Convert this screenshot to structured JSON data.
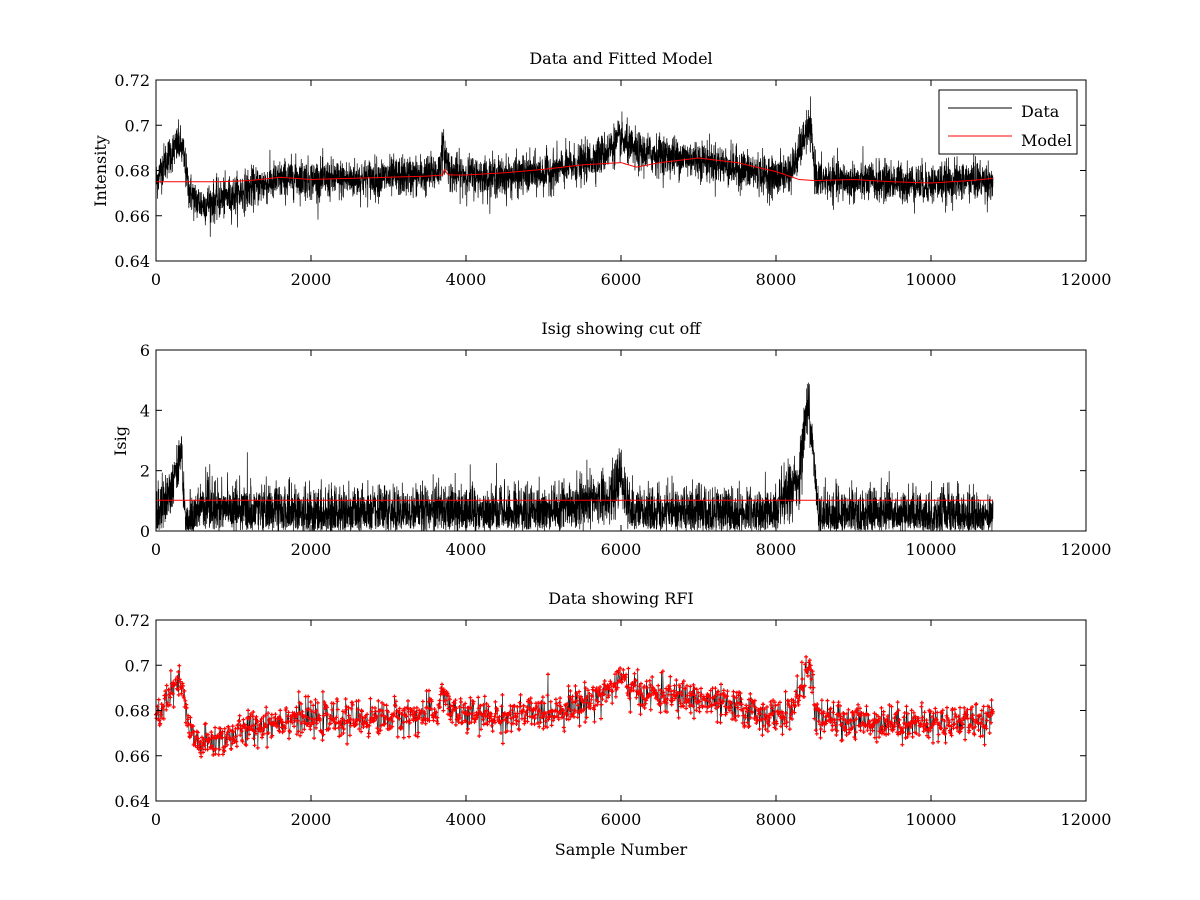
{
  "figure": {
    "background": "#ffffff"
  },
  "colors": {
    "data": "#000000",
    "model": "#ff0000",
    "rfi": "#ff0000",
    "axes": "#000000"
  },
  "chart_data": [
    {
      "type": "line",
      "title": "Data and Fitted Model",
      "xlabel": "",
      "ylabel": "Intensity",
      "xlim": [
        0,
        12000
      ],
      "ylim": [
        0.64,
        0.72
      ],
      "xticks": [
        0,
        2000,
        4000,
        6000,
        8000,
        10000,
        12000
      ],
      "xtick_labels": [
        "0",
        "2000",
        "4000",
        "6000",
        "8000",
        "10000",
        "12000"
      ],
      "yticks": [
        0.64,
        0.66,
        0.68,
        0.7,
        0.72
      ],
      "ytick_labels": [
        "0.64",
        "0.66",
        "0.68",
        "0.7",
        "0.72"
      ],
      "grid": false,
      "legend": {
        "position": "top-right",
        "entries": [
          "Data",
          "Model"
        ]
      },
      "series": [
        {
          "name": "Data",
          "color": "#000000",
          "noise": 0.008,
          "x": [
            0,
            100,
            200,
            300,
            350,
            420,
            500,
            600,
            800,
            1000,
            1200,
            1500,
            1800,
            2000,
            2500,
            3000,
            3500,
            3650,
            3700,
            3750,
            3800,
            4000,
            4500,
            5000,
            5500,
            5800,
            6000,
            6050,
            6200,
            6500,
            7000,
            7500,
            8000,
            8200,
            8300,
            8400,
            8450,
            8500,
            8550,
            8600,
            9000,
            9500,
            10000,
            10500,
            10800
          ],
          "y": [
            0.675,
            0.683,
            0.688,
            0.692,
            0.688,
            0.672,
            0.667,
            0.665,
            0.667,
            0.669,
            0.672,
            0.675,
            0.677,
            0.676,
            0.676,
            0.677,
            0.678,
            0.68,
            0.69,
            0.685,
            0.679,
            0.678,
            0.677,
            0.679,
            0.683,
            0.688,
            0.694,
            0.692,
            0.688,
            0.687,
            0.685,
            0.681,
            0.677,
            0.68,
            0.688,
            0.698,
            0.697,
            0.68,
            0.676,
            0.676,
            0.675,
            0.675,
            0.674,
            0.676,
            0.675
          ]
        },
        {
          "name": "Model",
          "color": "#ff0000",
          "noise": 0,
          "x": [
            0,
            400,
            800,
            1200,
            1600,
            2000,
            2500,
            3000,
            3500,
            3700,
            3720,
            3760,
            3800,
            4000,
            4500,
            5000,
            5500,
            6000,
            6050,
            6200,
            6500,
            7000,
            7500,
            8000,
            8300,
            8500,
            9000,
            9500,
            10000,
            10500,
            10800
          ],
          "y": [
            0.675,
            0.675,
            0.675,
            0.6755,
            0.677,
            0.676,
            0.6765,
            0.677,
            0.6775,
            0.678,
            0.6805,
            0.6785,
            0.678,
            0.678,
            0.679,
            0.6805,
            0.6825,
            0.6835,
            0.683,
            0.6815,
            0.6835,
            0.6855,
            0.6835,
            0.6795,
            0.676,
            0.6755,
            0.676,
            0.675,
            0.6745,
            0.6755,
            0.6765
          ]
        }
      ]
    },
    {
      "type": "line",
      "title": "Isig showing cut off",
      "xlabel": "",
      "ylabel": "Isig",
      "xlim": [
        0,
        12000
      ],
      "ylim": [
        0,
        6
      ],
      "xticks": [
        0,
        2000,
        4000,
        6000,
        8000,
        10000,
        12000
      ],
      "xtick_labels": [
        "0",
        "2000",
        "4000",
        "6000",
        "8000",
        "10000",
        "12000"
      ],
      "yticks": [
        0,
        2,
        4,
        6
      ],
      "ytick_labels": [
        "0",
        "2",
        "4",
        "6"
      ],
      "grid": false,
      "legend": null,
      "series": [
        {
          "name": "Isig",
          "color": "#000000",
          "noise": 1.0,
          "x": [
            0,
            150,
            250,
            330,
            380,
            600,
            1000,
            2000,
            3000,
            3700,
            4000,
            5000,
            5500,
            5900,
            6000,
            6050,
            6150,
            7000,
            8000,
            8300,
            8380,
            8430,
            8480,
            8550,
            9000,
            10000,
            10800
          ],
          "y": [
            0.5,
            1.2,
            2.0,
            2.6,
            0.2,
            0.8,
            0.7,
            0.6,
            0.6,
            0.8,
            0.6,
            0.7,
            0.8,
            1.3,
            1.8,
            1.2,
            0.6,
            0.6,
            0.6,
            1.8,
            3.8,
            4.2,
            2.5,
            0.5,
            0.5,
            0.5,
            0.5
          ]
        },
        {
          "name": "Cut off",
          "color": "#ff0000",
          "noise": 0,
          "x": [
            0,
            10800
          ],
          "y": [
            1.02,
            1.02
          ]
        }
      ]
    },
    {
      "type": "scatter",
      "title": "Data showing RFI",
      "xlabel": "Sample Number",
      "ylabel": "",
      "xlim": [
        0,
        12000
      ],
      "ylim": [
        0.64,
        0.72
      ],
      "xticks": [
        0,
        2000,
        4000,
        6000,
        8000,
        10000,
        12000
      ],
      "xtick_labels": [
        "0",
        "2000",
        "4000",
        "6000",
        "8000",
        "10000",
        "12000"
      ],
      "yticks": [
        0.64,
        0.66,
        0.68,
        0.7,
        0.72
      ],
      "ytick_labels": [
        "0.64",
        "0.66",
        "0.68",
        "0.7",
        "0.72"
      ],
      "grid": false,
      "legend": null,
      "series": [
        {
          "name": "Data",
          "color": "#ff0000",
          "marker": "+",
          "noise": 0.007,
          "x": [
            0,
            100,
            200,
            300,
            350,
            420,
            500,
            600,
            800,
            1000,
            1200,
            1500,
            1800,
            2000,
            2500,
            3000,
            3500,
            3650,
            3700,
            3750,
            3800,
            4000,
            4500,
            5000,
            5500,
            5800,
            6000,
            6050,
            6200,
            6500,
            7000,
            7500,
            8000,
            8200,
            8300,
            8400,
            8450,
            8500,
            8550,
            8600,
            9000,
            9500,
            10000,
            10500,
            10800
          ],
          "y": [
            0.675,
            0.683,
            0.688,
            0.692,
            0.688,
            0.672,
            0.667,
            0.665,
            0.667,
            0.669,
            0.672,
            0.675,
            0.677,
            0.676,
            0.676,
            0.677,
            0.678,
            0.68,
            0.69,
            0.685,
            0.679,
            0.678,
            0.677,
            0.679,
            0.683,
            0.688,
            0.694,
            0.692,
            0.688,
            0.687,
            0.685,
            0.681,
            0.677,
            0.68,
            0.688,
            0.698,
            0.697,
            0.68,
            0.676,
            0.676,
            0.675,
            0.675,
            0.674,
            0.676,
            0.675
          ]
        }
      ]
    }
  ]
}
